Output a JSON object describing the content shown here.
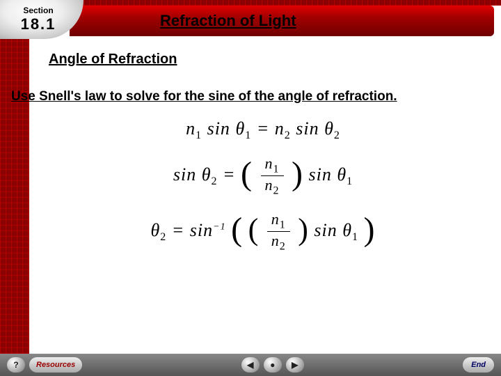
{
  "section": {
    "label": "Section",
    "number": "18.1"
  },
  "title": "Refraction of Light",
  "subtitle": "Angle of Refraction",
  "body": "Use Snell's law to solve for the sine of the angle of refraction.",
  "equations": {
    "eq1_html": "<i>n</i><sub>1</sub> sin&nbsp;<i>θ</i><sub>1</sub> = <i>n</i><sub>2</sub> sin&nbsp;<i>θ</i><sub>2</sub>",
    "eq2_lhs": "sin θ<sub>2</sub> =",
    "eq2_frac_num": "<i>n</i><sub>1</sub>",
    "eq2_frac_den": "<i>n</i><sub>2</sub>",
    "eq2_rhs": "sin θ<sub>1</sub>",
    "eq3_lhs": "θ<sub>2</sub> = sin<sup>−1</sup>",
    "eq3_frac_num": "<i>n</i><sub>1</sub>",
    "eq3_frac_den": "<i>n</i><sub>2</sub>",
    "eq3_rhs": "sin θ<sub>1</sub>"
  },
  "footer": {
    "help": "?",
    "resources": "Resources",
    "prev": "◀",
    "home": "●",
    "next": "▶",
    "end": "End"
  },
  "colors": {
    "title_bar_top": "#e00000",
    "title_bar_bottom": "#700000",
    "grid_bg": "#8b0000",
    "footer_top": "#888888",
    "footer_bottom": "#555555"
  }
}
